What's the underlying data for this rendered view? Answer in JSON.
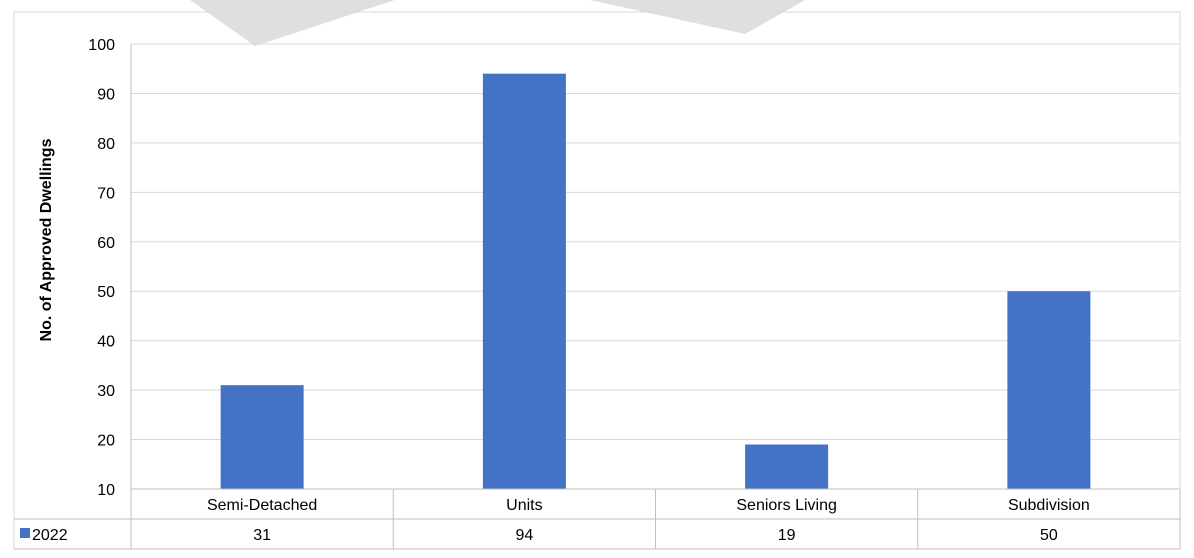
{
  "chart_data": {
    "type": "bar",
    "title": "",
    "xlabel": "",
    "ylabel": "No. of Approved Dwellings",
    "ylim": [
      10,
      100
    ],
    "yticks": [
      "10",
      "20",
      "30",
      "40",
      "50",
      "60",
      "70",
      "80",
      "90",
      "100"
    ],
    "grid": true,
    "categories": [
      "Semi-Detached",
      "Units",
      "Seniors Living",
      "Subdivision"
    ],
    "series": [
      {
        "name": "2022",
        "values": [
          31,
          94,
          19,
          50
        ],
        "value_labels": [
          "31",
          "94",
          "19",
          "50"
        ],
        "color": "#4472C4"
      }
    ],
    "legend": "data-table"
  }
}
